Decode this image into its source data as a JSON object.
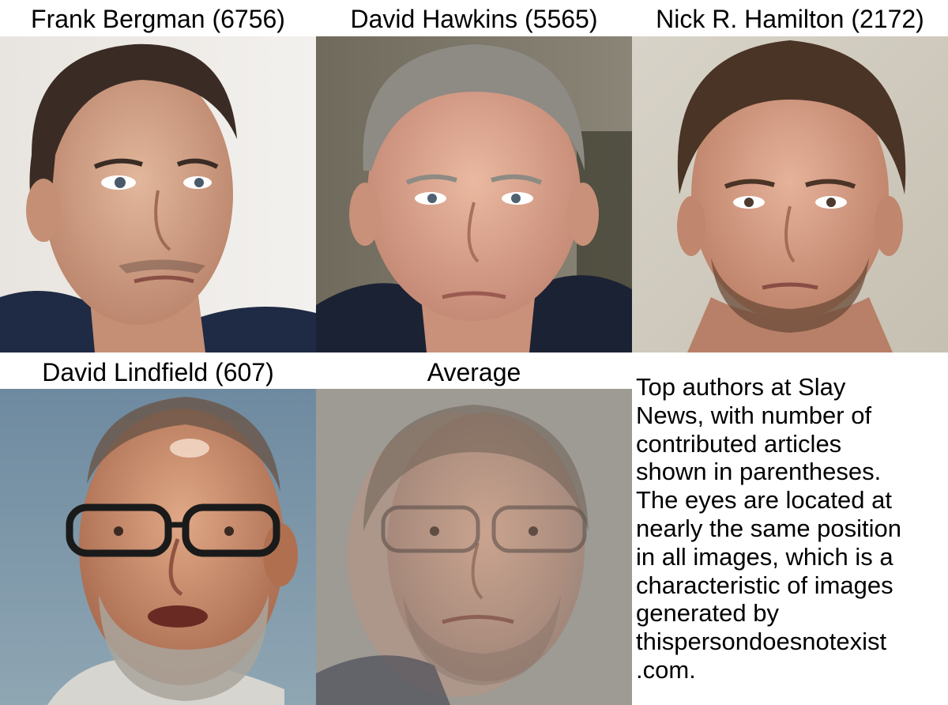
{
  "faces": [
    {
      "caption": "Frank Bergman (6756)",
      "icon": "portrait-photo"
    },
    {
      "caption": "David Hawkins (5565)",
      "icon": "portrait-photo"
    },
    {
      "caption": "Nick R. Hamilton (2172)",
      "icon": "portrait-photo"
    },
    {
      "caption": "David Lindfield (607)",
      "icon": "portrait-photo-glasses"
    },
    {
      "caption": "Average",
      "icon": "blended-average-portrait"
    }
  ],
  "note": "Top authors at Slay\nNews, with number of\ncontributed articles\nshown in parentheses.\nThe eyes are located at\nnearly the same position\nin all images, which is a\ncharacteristic of images\ngenerated by\nthispersondoesnotexist\n.com.",
  "colors": {
    "background": "#ffffff",
    "text": "#000000"
  }
}
